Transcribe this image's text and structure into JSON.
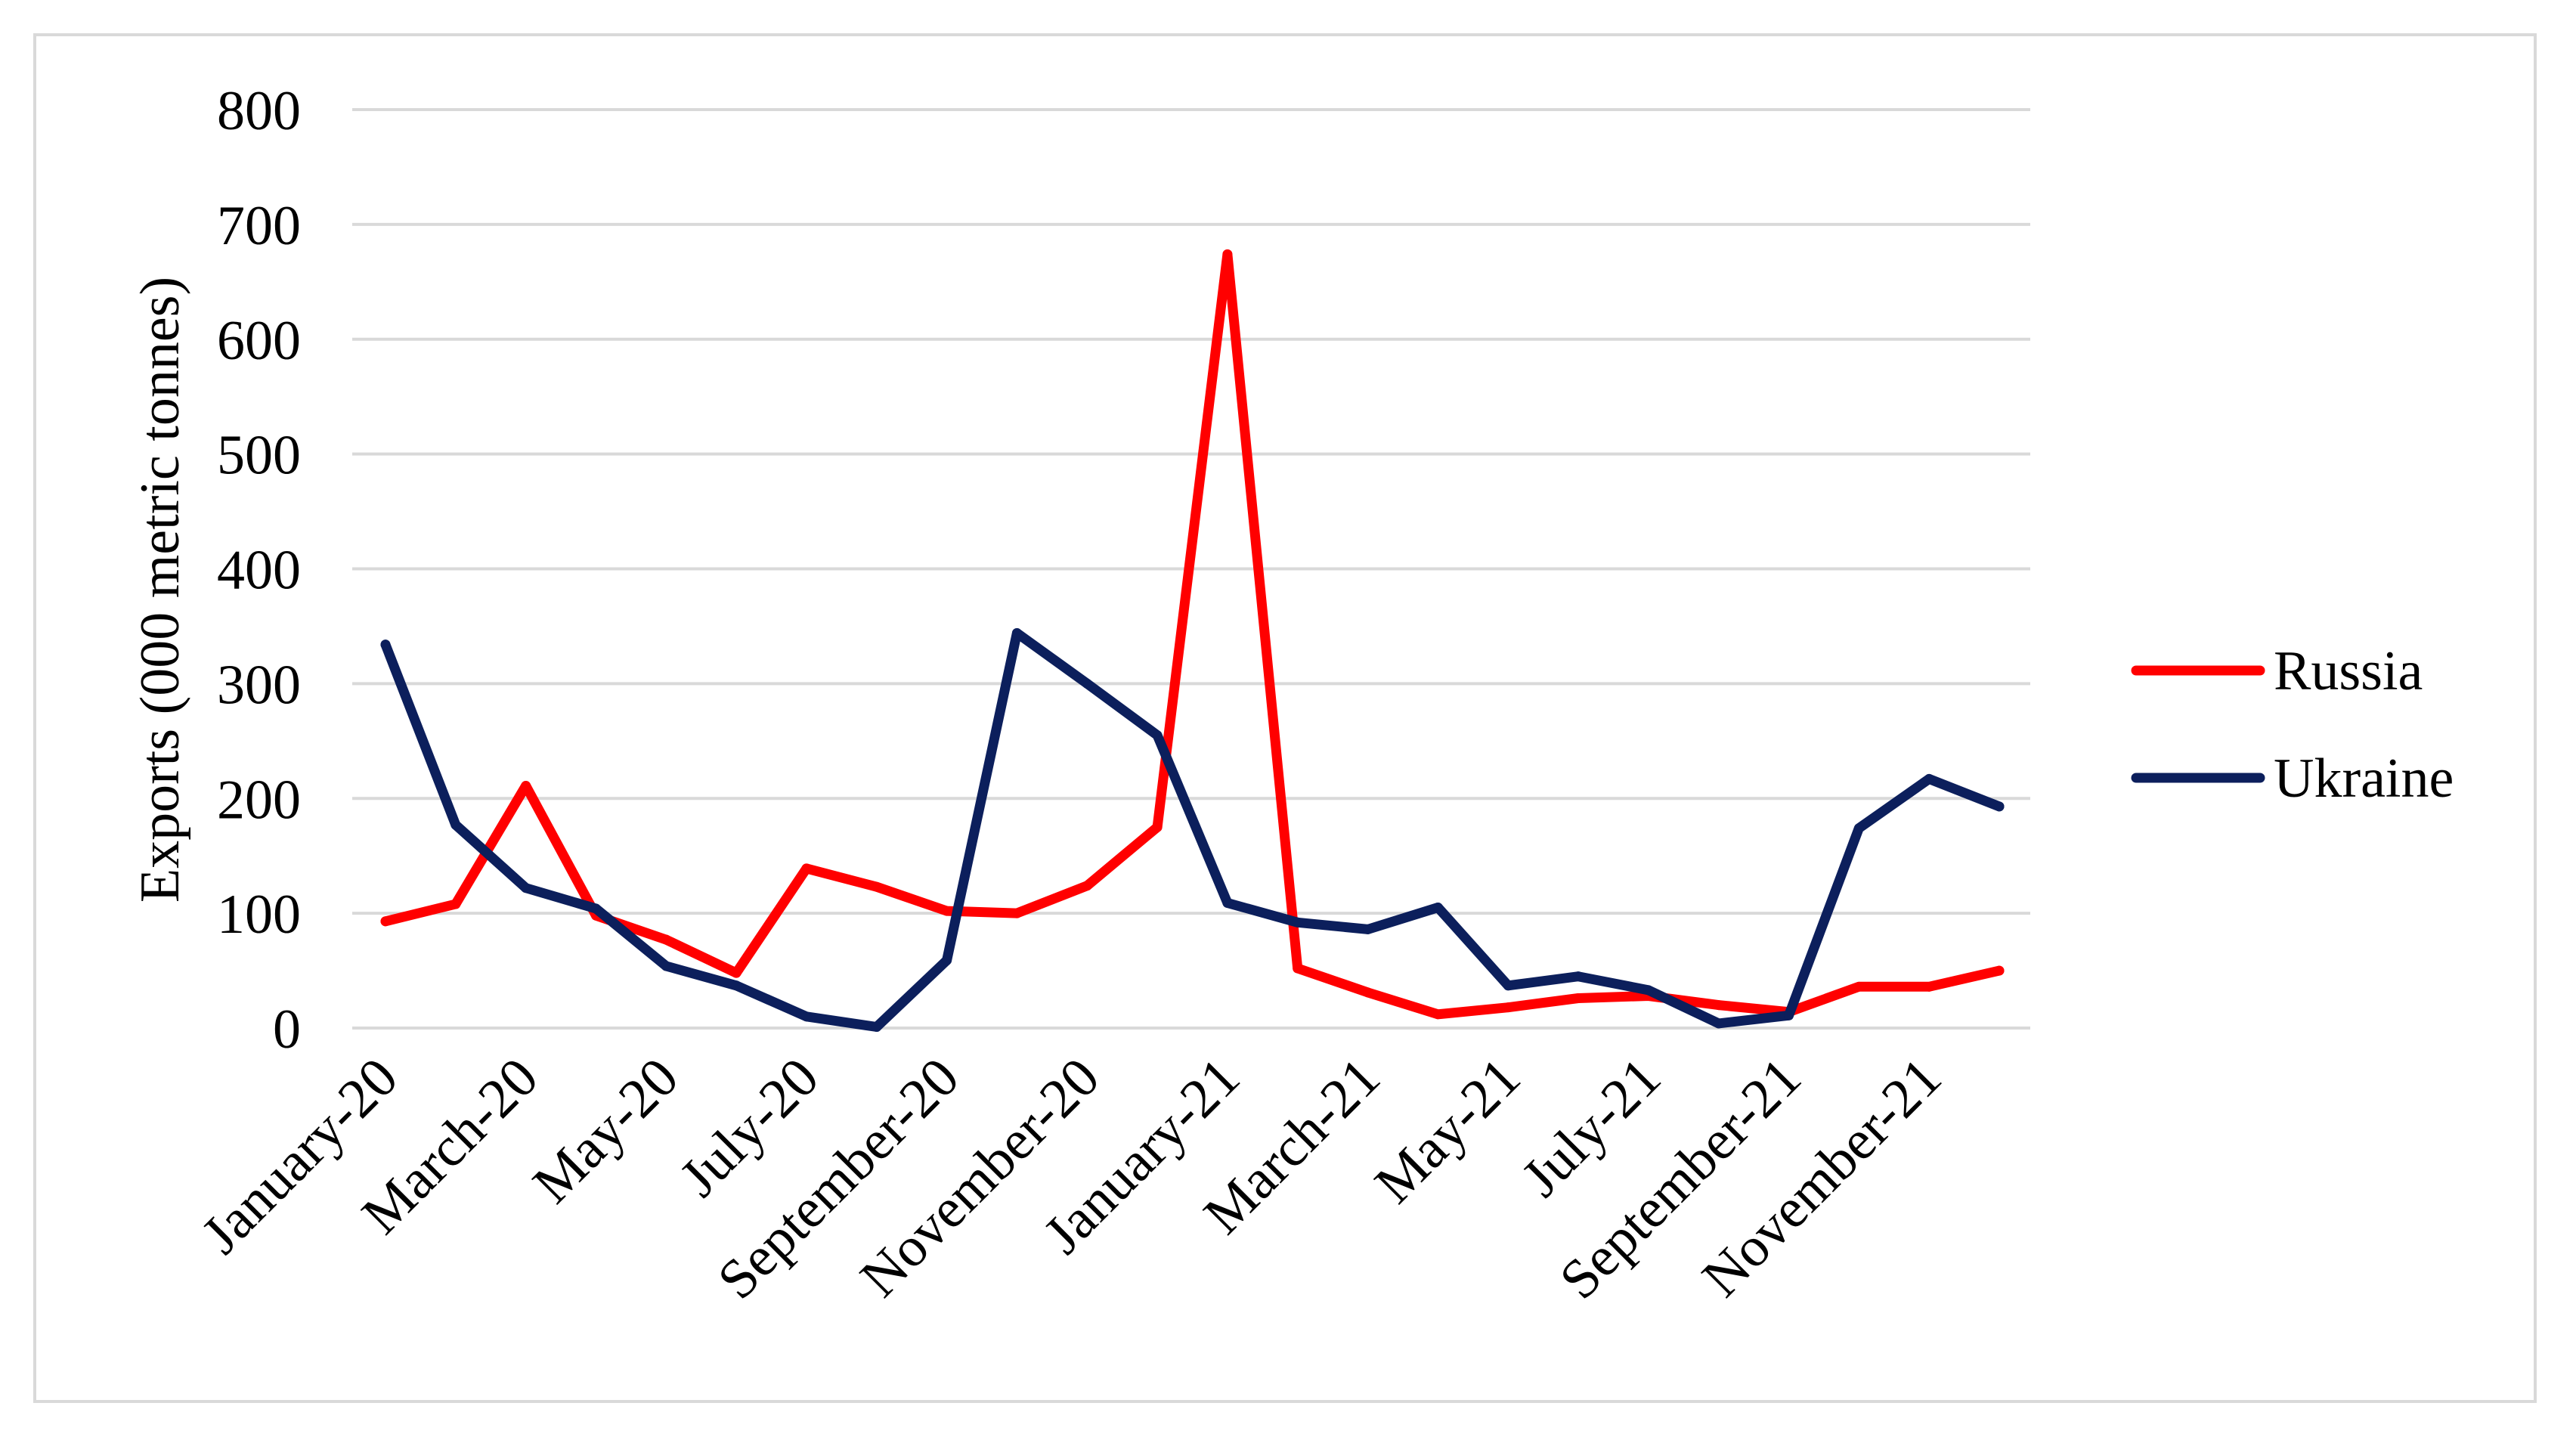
{
  "chart_data": {
    "type": "line",
    "title": "",
    "xlabel": "",
    "ylabel": "Exports (000 metric tonnes)",
    "ylim": [
      0,
      800
    ],
    "yticks": [
      0,
      100,
      200,
      300,
      400,
      500,
      600,
      700,
      800
    ],
    "grid": true,
    "legend_position": "right",
    "categories": [
      "January-20",
      "February-20",
      "March-20",
      "April-20",
      "May-20",
      "June-20",
      "July-20",
      "August-20",
      "September-20",
      "October-20",
      "November-20",
      "December-20",
      "January-21",
      "February-21",
      "March-21",
      "April-21",
      "May-21",
      "June-21",
      "July-21",
      "August-21",
      "September-21",
      "October-21",
      "November-21",
      "December-21"
    ],
    "tick_labels": [
      "January-20",
      "",
      "March-20",
      "",
      "May-20",
      "",
      "July-20",
      "",
      "September-20",
      "",
      "November-20",
      "",
      "January-21",
      "",
      "March-21",
      "",
      "May-21",
      "",
      "July-21",
      "",
      "September-21",
      "",
      "November-21",
      ""
    ],
    "series": [
      {
        "name": "Russia",
        "color": "#ff0000",
        "values": [
          93,
          108,
          211,
          98,
          77,
          48,
          139,
          123,
          102,
          100,
          124,
          175,
          674,
          52,
          31,
          12,
          18,
          26,
          28,
          20,
          14,
          36,
          36,
          50
        ]
      },
      {
        "name": "Ukraine",
        "color": "#0c1f5c",
        "values": [
          334,
          177,
          122,
          104,
          54,
          37,
          10,
          1,
          59,
          344,
          300,
          255,
          109,
          92,
          86,
          105,
          37,
          45,
          33,
          4,
          11,
          174,
          217,
          193
        ]
      }
    ]
  }
}
